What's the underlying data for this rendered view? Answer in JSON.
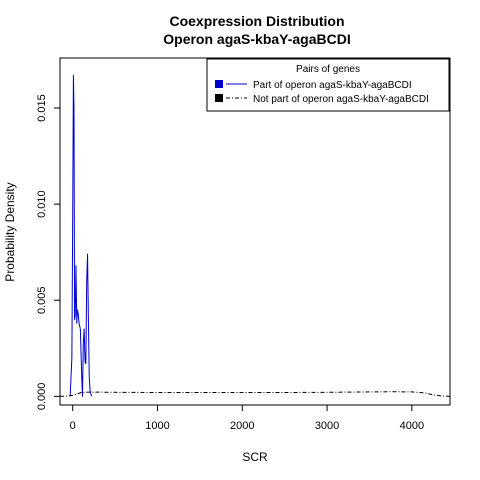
{
  "chart_data": {
    "type": "line",
    "title": "Coexpression Distribution",
    "subtitle": "Operon agaS-kbaY-agaBCDI",
    "xlabel": "SCR",
    "ylabel": "Probability Density",
    "xlim": [
      -150,
      4450
    ],
    "ylim": [
      -0.00045,
      0.0176
    ],
    "x_ticks": [
      0,
      1000,
      2000,
      3000,
      4000
    ],
    "x_tick_labels": [
      "0",
      "1000",
      "2000",
      "3000",
      "4000"
    ],
    "y_ticks": [
      0,
      0.005,
      0.01,
      0.015
    ],
    "y_tick_labels": [
      "0.000",
      "0.005",
      "0.010",
      "0.015"
    ],
    "legend": {
      "title": "Pairs of genes",
      "placement": "top-right",
      "entries": [
        {
          "label": "Part of operon agaS-kbaY-agaBCDI",
          "color": "#0000cc",
          "line": "solid"
        },
        {
          "label": "Not part of operon agaS-kbaY-agaBCDI",
          "color": "#000000",
          "line": "dashed"
        }
      ]
    },
    "series": [
      {
        "name": "Part of operon agaS-kbaY-agaBCDI",
        "color": "#0000cc",
        "line": "solid",
        "x": [
          -30,
          -10,
          0,
          8,
          15,
          22,
          30,
          38,
          48,
          55,
          65,
          75,
          90,
          105,
          115,
          125,
          135,
          145,
          155,
          165,
          175,
          185,
          195,
          205,
          215,
          225
        ],
        "y": [
          0,
          0.002,
          0.0095,
          0.0167,
          0.015,
          0.004,
          0.0042,
          0.0068,
          0.0038,
          0.0045,
          0.0043,
          0.0038,
          0.0035,
          0.0012,
          0.0,
          0.0028,
          0.0035,
          0.0018,
          0.0017,
          0.006,
          0.0074,
          0.004,
          0.001,
          0.0003,
          0.0001,
          0
        ]
      },
      {
        "name": "Not part of operon agaS-kbaY-agaBCDI",
        "color": "#000000",
        "line": "dashed",
        "x": [
          -150,
          -50,
          0,
          50,
          100,
          200,
          300,
          500,
          1000,
          1500,
          2000,
          2500,
          3000,
          3500,
          3800,
          4000,
          4150,
          4250,
          4350,
          4450
        ],
        "y": [
          0,
          2e-05,
          5e-05,
          0.00012,
          0.0002,
          0.00022,
          0.00022,
          0.00021,
          0.0002,
          0.0002,
          0.0002,
          0.0002,
          0.00021,
          0.00023,
          0.00024,
          0.00023,
          0.00018,
          8e-05,
          2e-05,
          0
        ]
      }
    ]
  }
}
